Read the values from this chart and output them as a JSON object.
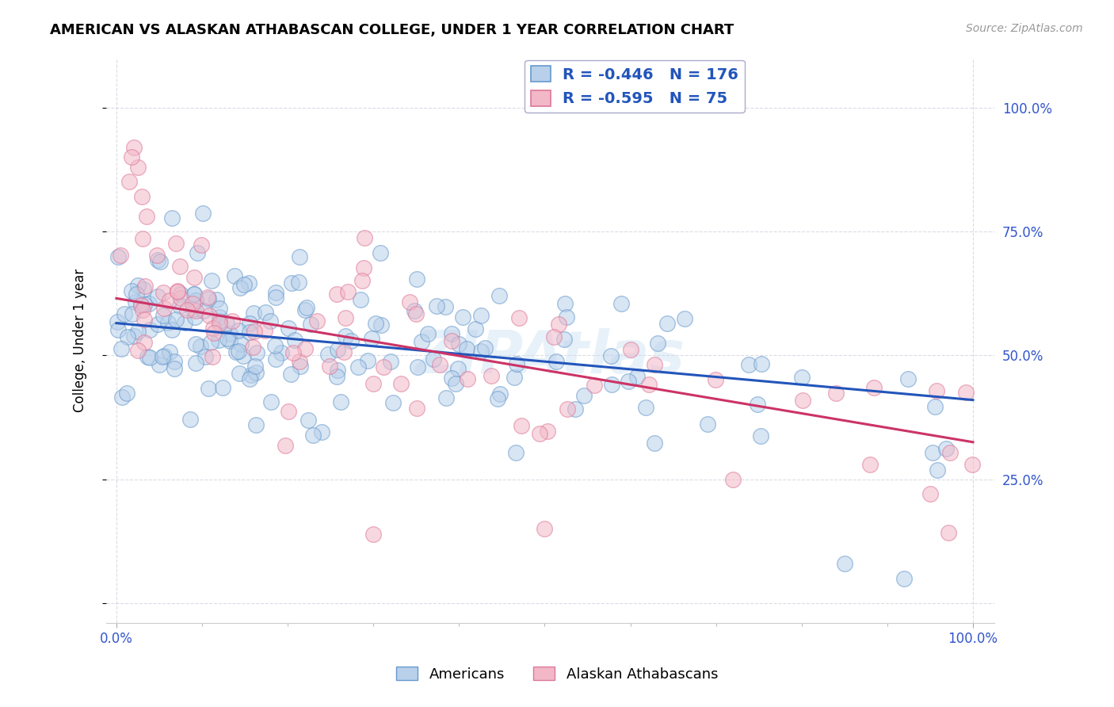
{
  "title": "AMERICAN VS ALASKAN ATHABASCAN COLLEGE, UNDER 1 YEAR CORRELATION CHART",
  "source": "Source: ZipAtlas.com",
  "ylabel": "College, Under 1 year",
  "legend_r_blue": "-0.446",
  "legend_n_blue": "176",
  "legend_r_pink": "-0.595",
  "legend_n_pink": "75",
  "blue_face_color": "#b8d0ea",
  "pink_face_color": "#f2b8c8",
  "blue_edge_color": "#6699cc",
  "pink_edge_color": "#dd7799",
  "blue_line_color": "#2255bb",
  "pink_line_color": "#cc3366",
  "axis_tick_color": "#3355cc",
  "blue_intercept": 0.565,
  "blue_slope": -0.155,
  "pink_intercept": 0.615,
  "pink_slope": -0.29,
  "seed": 77
}
